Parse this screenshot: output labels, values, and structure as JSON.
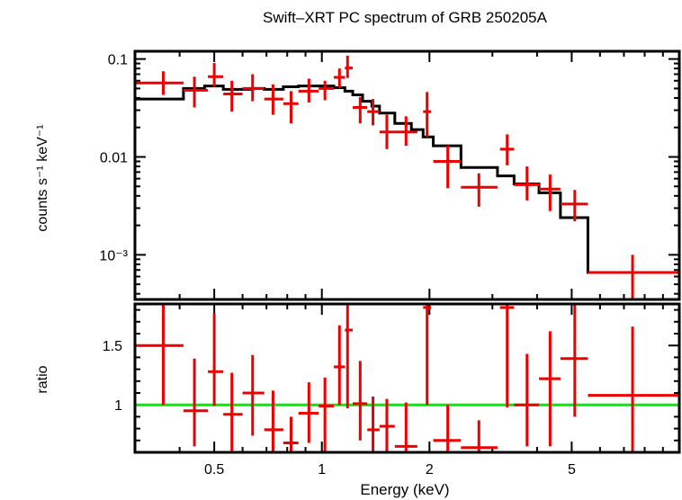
{
  "chart_data": [
    {
      "type": "scatter",
      "title": "Swift–XRT PC spectrum of GRB 250205A",
      "xlabel": "",
      "ylabel": "counts s⁻¹ keV⁻¹",
      "xscale": "log",
      "yscale": "log",
      "xlim": [
        0.3,
        10
      ],
      "ylim": [
        0.00035,
        0.12
      ],
      "y_tick_labels": [
        "0.1",
        "0.01",
        "10⁻³"
      ],
      "y_tick_values": [
        0.1,
        0.01,
        0.001
      ],
      "series": [
        {
          "kind": "data",
          "color": "#ee0000",
          "points": [
            {
              "x": 0.36,
              "xlo": 0.3,
              "xhi": 0.41,
              "y": 0.057,
              "ylo": 0.043,
              "yhi": 0.075
            },
            {
              "x": 0.44,
              "xlo": 0.41,
              "xhi": 0.48,
              "y": 0.048,
              "ylo": 0.032,
              "yhi": 0.066
            },
            {
              "x": 0.5,
              "xlo": 0.48,
              "xhi": 0.53,
              "y": 0.066,
              "ylo": 0.052,
              "yhi": 0.091
            },
            {
              "x": 0.56,
              "xlo": 0.53,
              "xhi": 0.6,
              "y": 0.044,
              "ylo": 0.029,
              "yhi": 0.06
            },
            {
              "x": 0.64,
              "xlo": 0.6,
              "xhi": 0.69,
              "y": 0.05,
              "ylo": 0.037,
              "yhi": 0.07
            },
            {
              "x": 0.73,
              "xlo": 0.69,
              "xhi": 0.78,
              "y": 0.039,
              "ylo": 0.027,
              "yhi": 0.055
            },
            {
              "x": 0.82,
              "xlo": 0.78,
              "xhi": 0.86,
              "y": 0.035,
              "ylo": 0.022,
              "yhi": 0.047
            },
            {
              "x": 0.92,
              "xlo": 0.86,
              "xhi": 0.98,
              "y": 0.047,
              "ylo": 0.036,
              "yhi": 0.063
            },
            {
              "x": 1.02,
              "xlo": 0.98,
              "xhi": 1.08,
              "y": 0.05,
              "ylo": 0.038,
              "yhi": 0.06
            },
            {
              "x": 1.12,
              "xlo": 1.08,
              "xhi": 1.16,
              "y": 0.065,
              "ylo": 0.051,
              "yhi": 0.08
            },
            {
              "x": 1.18,
              "xlo": 1.16,
              "xhi": 1.22,
              "y": 0.081,
              "ylo": 0.064,
              "yhi": 0.108
            },
            {
              "x": 1.28,
              "xlo": 1.22,
              "xhi": 1.34,
              "y": 0.032,
              "ylo": 0.022,
              "yhi": 0.041
            },
            {
              "x": 1.39,
              "xlo": 1.34,
              "xhi": 1.45,
              "y": 0.029,
              "ylo": 0.021,
              "yhi": 0.039
            },
            {
              "x": 1.52,
              "xlo": 1.45,
              "xhi": 1.6,
              "y": 0.018,
              "ylo": 0.012,
              "yhi": 0.027
            },
            {
              "x": 1.72,
              "xlo": 1.6,
              "xhi": 1.85,
              "y": 0.018,
              "ylo": 0.013,
              "yhi": 0.026
            },
            {
              "x": 1.97,
              "xlo": 1.92,
              "xhi": 2.02,
              "y": 0.029,
              "ylo": 0.016,
              "yhi": 0.046
            },
            {
              "x": 2.25,
              "xlo": 2.05,
              "xhi": 2.45,
              "y": 0.009,
              "ylo": 0.0048,
              "yhi": 0.013
            },
            {
              "x": 2.75,
              "xlo": 2.45,
              "xhi": 3.1,
              "y": 0.0049,
              "ylo": 0.0031,
              "yhi": 0.0068
            },
            {
              "x": 3.3,
              "xlo": 3.15,
              "xhi": 3.45,
              "y": 0.012,
              "ylo": 0.0082,
              "yhi": 0.017
            },
            {
              "x": 3.75,
              "xlo": 3.45,
              "xhi": 4.05,
              "y": 0.0052,
              "ylo": 0.0036,
              "yhi": 0.008
            },
            {
              "x": 4.35,
              "xlo": 4.05,
              "xhi": 4.65,
              "y": 0.0047,
              "ylo": 0.0028,
              "yhi": 0.0066
            },
            {
              "x": 5.1,
              "xlo": 4.65,
              "xhi": 5.55,
              "y": 0.0033,
              "ylo": 0.0022,
              "yhi": 0.0046
            },
            {
              "x": 7.4,
              "xlo": 5.55,
              "xhi": 10.0,
              "y": 0.00066,
              "ylo": 0.00035,
              "yhi": 0.001
            }
          ]
        },
        {
          "kind": "model",
          "color": "#000000",
          "steps": [
            {
              "x0": 0.3,
              "x1": 0.41,
              "y": 0.039
            },
            {
              "x0": 0.41,
              "x1": 0.47,
              "y": 0.05
            },
            {
              "x0": 0.47,
              "x1": 0.53,
              "y": 0.053
            },
            {
              "x0": 0.53,
              "x1": 0.58,
              "y": 0.049
            },
            {
              "x0": 0.58,
              "x1": 0.64,
              "y": 0.049
            },
            {
              "x0": 0.64,
              "x1": 0.69,
              "y": 0.05
            },
            {
              "x0": 0.69,
              "x1": 0.78,
              "y": 0.049
            },
            {
              "x0": 0.78,
              "x1": 0.86,
              "y": 0.052
            },
            {
              "x0": 0.86,
              "x1": 1.08,
              "y": 0.053
            },
            {
              "x0": 1.08,
              "x1": 1.16,
              "y": 0.051
            },
            {
              "x0": 1.16,
              "x1": 1.22,
              "y": 0.047
            },
            {
              "x0": 1.22,
              "x1": 1.3,
              "y": 0.043
            },
            {
              "x0": 1.3,
              "x1": 1.38,
              "y": 0.037
            },
            {
              "x0": 1.38,
              "x1": 1.45,
              "y": 0.033
            },
            {
              "x0": 1.45,
              "x1": 1.6,
              "y": 0.028
            },
            {
              "x0": 1.6,
              "x1": 1.78,
              "y": 0.022
            },
            {
              "x0": 1.78,
              "x1": 1.92,
              "y": 0.019
            },
            {
              "x0": 1.92,
              "x1": 2.05,
              "y": 0.016
            },
            {
              "x0": 2.05,
              "x1": 2.45,
              "y": 0.013
            },
            {
              "x0": 2.45,
              "x1": 3.1,
              "y": 0.0078
            },
            {
              "x0": 3.1,
              "x1": 3.45,
              "y": 0.0064
            },
            {
              "x0": 3.45,
              "x1": 4.05,
              "y": 0.0053
            },
            {
              "x0": 4.05,
              "x1": 4.65,
              "y": 0.0043
            },
            {
              "x0": 4.65,
              "x1": 5.55,
              "y": 0.0024
            },
            {
              "x0": 5.55,
              "x1": 10.0,
              "y": 0.00066
            }
          ]
        }
      ]
    },
    {
      "type": "scatter",
      "title": "",
      "xlabel": "Energy (keV)",
      "ylabel": "ratio",
      "xscale": "log",
      "yscale": "linear",
      "xlim": [
        0.3,
        10
      ],
      "ylim": [
        0.6,
        1.85
      ],
      "x_tick_labels": [
        "0.5",
        "1",
        "2",
        "5"
      ],
      "x_tick_values": [
        0.5,
        1,
        2,
        5
      ],
      "y_tick_labels": [
        "1.5",
        "1"
      ],
      "y_tick_values": [
        1.5,
        1
      ],
      "reference_line": {
        "y": 1,
        "color": "#00ee00"
      },
      "series": [
        {
          "kind": "ratio",
          "color": "#ee0000",
          "points": [
            {
              "x": 0.36,
              "xlo": 0.3,
              "xhi": 0.41,
              "y": 1.5,
              "ylo": 1.0,
              "yhi": 1.85
            },
            {
              "x": 0.44,
              "xlo": 0.41,
              "xhi": 0.48,
              "y": 0.95,
              "ylo": 0.65,
              "yhi": 1.39
            },
            {
              "x": 0.5,
              "xlo": 0.48,
              "xhi": 0.53,
              "y": 1.28,
              "ylo": 0.99,
              "yhi": 1.77
            },
            {
              "x": 0.56,
              "xlo": 0.53,
              "xhi": 0.6,
              "y": 0.92,
              "ylo": 0.6,
              "yhi": 1.27
            },
            {
              "x": 0.64,
              "xlo": 0.6,
              "xhi": 0.69,
              "y": 1.1,
              "ylo": 0.74,
              "yhi": 1.42
            },
            {
              "x": 0.73,
              "xlo": 0.69,
              "xhi": 0.78,
              "y": 0.79,
              "ylo": 0.6,
              "yhi": 1.12
            },
            {
              "x": 0.82,
              "xlo": 0.78,
              "xhi": 0.86,
              "y": 0.68,
              "ylo": 0.6,
              "yhi": 0.9
            },
            {
              "x": 0.92,
              "xlo": 0.86,
              "xhi": 0.98,
              "y": 0.93,
              "ylo": 0.68,
              "yhi": 1.19
            },
            {
              "x": 1.02,
              "xlo": 0.98,
              "xhi": 1.08,
              "y": 0.99,
              "ylo": 0.6,
              "yhi": 1.23
            },
            {
              "x": 1.12,
              "xlo": 1.08,
              "xhi": 1.16,
              "y": 1.32,
              "ylo": 1.0,
              "yhi": 1.67
            },
            {
              "x": 1.18,
              "xlo": 1.16,
              "xhi": 1.22,
              "y": 1.63,
              "ylo": 0.97,
              "yhi": 1.85
            },
            {
              "x": 1.28,
              "xlo": 1.22,
              "xhi": 1.34,
              "y": 1.01,
              "ylo": 0.7,
              "yhi": 1.37
            },
            {
              "x": 1.39,
              "xlo": 1.34,
              "xhi": 1.45,
              "y": 0.79,
              "ylo": 0.6,
              "yhi": 1.07
            },
            {
              "x": 1.52,
              "xlo": 1.45,
              "xhi": 1.6,
              "y": 0.82,
              "ylo": 0.6,
              "yhi": 1.05
            },
            {
              "x": 1.72,
              "xlo": 1.6,
              "xhi": 1.85,
              "y": 0.65,
              "ylo": 0.6,
              "yhi": 1.02
            },
            {
              "x": 1.97,
              "xlo": 1.92,
              "xhi": 2.02,
              "y": 1.82,
              "ylo": 1.0,
              "yhi": 1.85
            },
            {
              "x": 2.25,
              "xlo": 2.05,
              "xhi": 2.45,
              "y": 0.7,
              "ylo": 0.6,
              "yhi": 1.0
            },
            {
              "x": 2.75,
              "xlo": 2.45,
              "xhi": 3.1,
              "y": 0.64,
              "ylo": 0.6,
              "yhi": 0.87
            },
            {
              "x": 3.3,
              "xlo": 3.15,
              "xhi": 3.45,
              "y": 1.82,
              "ylo": 0.98,
              "yhi": 1.85
            },
            {
              "x": 3.75,
              "xlo": 3.45,
              "xhi": 4.05,
              "y": 1.0,
              "ylo": 0.65,
              "yhi": 1.43
            },
            {
              "x": 4.35,
              "xlo": 4.05,
              "xhi": 4.65,
              "y": 1.22,
              "ylo": 0.65,
              "yhi": 1.62
            },
            {
              "x": 5.1,
              "xlo": 4.65,
              "xhi": 5.55,
              "y": 1.39,
              "ylo": 0.9,
              "yhi": 1.85
            },
            {
              "x": 7.4,
              "xlo": 5.55,
              "xhi": 10.0,
              "y": 1.08,
              "ylo": 0.6,
              "yhi": 1.66
            }
          ]
        }
      ]
    }
  ]
}
